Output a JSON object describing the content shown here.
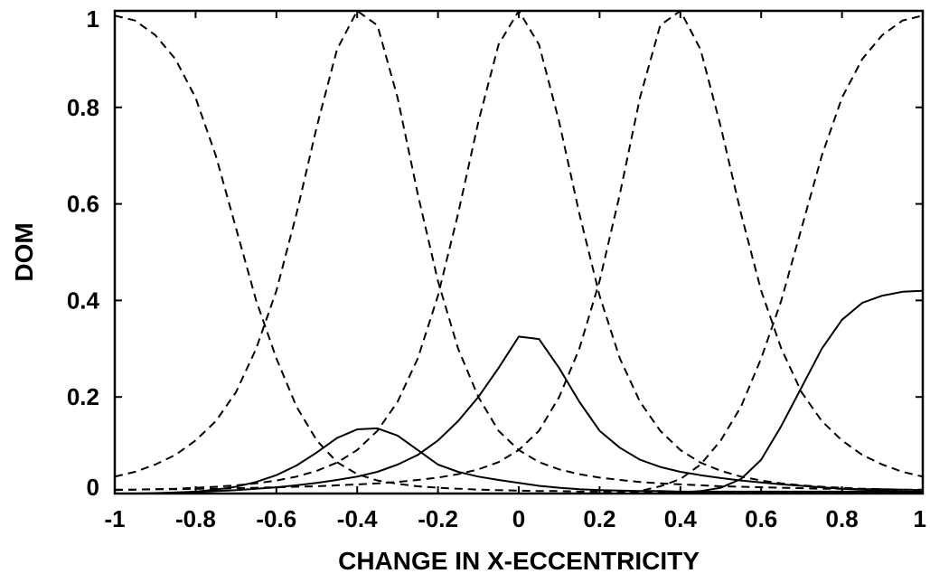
{
  "chart_data": {
    "type": "line",
    "title": "",
    "xlabel": "CHANGE IN X-ECCENTRICITY",
    "ylabel": "DOM",
    "xlim": [
      -1,
      1
    ],
    "ylim": [
      0,
      1
    ],
    "grid": false,
    "x_ticks": [
      "-1",
      "-0.8",
      "-0.6",
      "-0.4",
      "-0.2",
      "0",
      "0.2",
      "0.4",
      "0.6",
      "0.8",
      "1"
    ],
    "y_ticks": [
      "0",
      "0.2",
      "0.4",
      "0.6",
      "0.8",
      "1"
    ],
    "x": [
      -1,
      -0.95,
      -0.9,
      -0.85,
      -0.8,
      -0.75,
      -0.7,
      -0.65,
      -0.6,
      -0.55,
      -0.5,
      -0.45,
      -0.4,
      -0.35,
      -0.3,
      -0.25,
      -0.2,
      -0.15,
      -0.1,
      -0.05,
      0,
      0.05,
      0.1,
      0.15,
      0.2,
      0.25,
      0.3,
      0.35,
      0.4,
      0.45,
      0.5,
      0.55,
      0.6,
      0.65,
      0.7,
      0.75,
      0.8,
      0.85,
      0.9,
      0.95,
      1
    ],
    "series": [
      {
        "style": "dashed",
        "values": [
          0.99,
          0.98,
          0.95,
          0.9,
          0.82,
          0.7,
          0.55,
          0.4,
          0.28,
          0.18,
          0.11,
          0.065,
          0.04,
          0.027,
          0.02,
          0.015,
          0.012,
          0.01,
          0.008,
          0.007,
          0.006,
          0.005,
          0.005,
          0.004,
          0.004,
          0.004,
          0.003,
          0.003,
          0.003,
          0.003,
          0.003,
          0.003,
          0.003,
          0.003,
          0.002,
          0.002,
          0.002,
          0.002,
          0.002,
          0.002,
          0.002
        ]
      },
      {
        "style": "dashed",
        "values": [
          0.035,
          0.045,
          0.06,
          0.08,
          0.11,
          0.15,
          0.21,
          0.3,
          0.42,
          0.58,
          0.76,
          0.92,
          1.0,
          0.97,
          0.82,
          0.62,
          0.44,
          0.3,
          0.2,
          0.13,
          0.09,
          0.065,
          0.05,
          0.04,
          0.033,
          0.028,
          0.024,
          0.021,
          0.019,
          0.017,
          0.015,
          0.014,
          0.013,
          0.012,
          0.011,
          0.01,
          0.01,
          0.009,
          0.009,
          0.008,
          0.008
        ]
      },
      {
        "style": "dashed",
        "values": [
          0.007,
          0.008,
          0.009,
          0.01,
          0.012,
          0.014,
          0.017,
          0.021,
          0.027,
          0.035,
          0.047,
          0.064,
          0.09,
          0.13,
          0.19,
          0.28,
          0.41,
          0.58,
          0.77,
          0.93,
          1.0,
          0.93,
          0.77,
          0.58,
          0.41,
          0.28,
          0.19,
          0.13,
          0.09,
          0.064,
          0.047,
          0.035,
          0.027,
          0.021,
          0.017,
          0.014,
          0.012,
          0.01,
          0.009,
          0.008,
          0.007
        ]
      },
      {
        "style": "dashed",
        "values": [
          0.008,
          0.008,
          0.009,
          0.009,
          0.01,
          0.01,
          0.011,
          0.012,
          0.013,
          0.014,
          0.015,
          0.017,
          0.019,
          0.021,
          0.024,
          0.028,
          0.033,
          0.04,
          0.05,
          0.065,
          0.09,
          0.13,
          0.2,
          0.3,
          0.44,
          0.62,
          0.82,
          0.97,
          1.0,
          0.92,
          0.76,
          0.58,
          0.42,
          0.3,
          0.21,
          0.15,
          0.11,
          0.08,
          0.06,
          0.045,
          0.035
        ]
      },
      {
        "style": "dashed",
        "values": [
          0.0,
          0.0,
          0.0,
          0.0,
          0.0,
          0.0,
          0.0,
          0.0,
          0.0,
          0.0,
          0.0,
          0.0,
          0.0,
          0.0,
          0.0,
          0.0,
          0.0,
          0.0,
          0.0,
          0.0,
          0.0,
          0.0,
          0.0,
          0.0,
          0.0,
          0.0,
          0.005,
          0.015,
          0.03,
          0.06,
          0.11,
          0.18,
          0.28,
          0.4,
          0.55,
          0.7,
          0.82,
          0.9,
          0.95,
          0.98,
          0.99
        ]
      },
      {
        "style": "solid",
        "values": [
          0.0,
          0.0,
          0.0,
          0.002,
          0.004,
          0.008,
          0.014,
          0.024,
          0.038,
          0.058,
          0.085,
          0.115,
          0.133,
          0.135,
          0.12,
          0.09,
          0.06,
          0.045,
          0.035,
          0.028,
          0.022,
          0.016,
          0.012,
          0.009,
          0.007,
          0.006,
          0.005,
          0.005,
          0.004,
          0.004,
          0.004,
          0.004,
          0.004,
          0.004,
          0.004,
          0.004,
          0.004,
          0.004,
          0.004,
          0.004,
          0.004
        ]
      },
      {
        "style": "solid",
        "values": [
          0.0,
          0.0,
          0.001,
          0.002,
          0.003,
          0.005,
          0.007,
          0.01,
          0.013,
          0.017,
          0.022,
          0.028,
          0.035,
          0.045,
          0.06,
          0.08,
          0.11,
          0.15,
          0.2,
          0.26,
          0.325,
          0.32,
          0.26,
          0.19,
          0.13,
          0.095,
          0.07,
          0.055,
          0.045,
          0.038,
          0.032,
          0.027,
          0.023,
          0.019,
          0.016,
          0.013,
          0.01,
          0.008,
          0.006,
          0.004,
          0.003
        ]
      },
      {
        "style": "solid",
        "values": [
          0.0,
          0.0,
          0.0,
          0.0,
          0.0,
          0.0,
          0.0,
          0.0,
          0.0,
          0.0,
          0.0,
          0.0,
          0.0,
          0.0,
          0.0,
          0.0,
          0.0,
          0.0,
          0.0,
          0.0,
          0.0,
          0.0,
          0.0,
          0.0,
          0.0,
          0.0,
          0.0,
          0.0,
          0.002,
          0.005,
          0.012,
          0.03,
          0.07,
          0.14,
          0.22,
          0.3,
          0.36,
          0.395,
          0.41,
          0.418,
          0.42
        ]
      }
    ]
  }
}
